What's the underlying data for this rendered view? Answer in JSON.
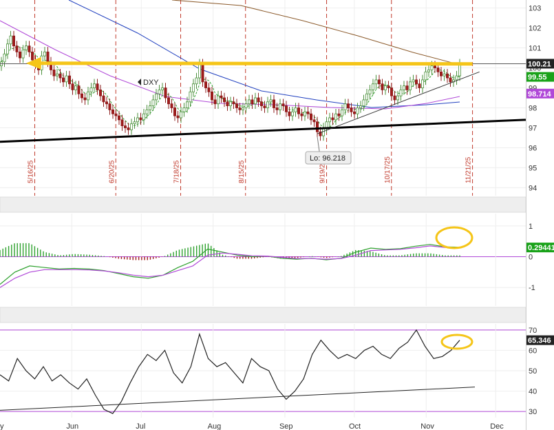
{
  "chart_data": [
    {
      "type": "candlestick",
      "panel": "price",
      "symbol": "DXY",
      "ylim": [
        93.6,
        103.4
      ],
      "y_ticks": [
        103,
        102,
        101,
        100,
        99,
        98,
        97,
        96,
        95,
        94
      ],
      "x_months": [
        {
          "label": "Jun",
          "date": "2025-06-01"
        },
        {
          "label": "Jul",
          "date": "2025-07-01"
        },
        {
          "label": "Aug",
          "date": "2025-08-01"
        },
        {
          "label": "Sep",
          "date": "2025-09-01"
        },
        {
          "label": "Oct",
          "date": "2025-10-01"
        },
        {
          "label": "Nov",
          "date": "2025-11-01"
        },
        {
          "label": "Dec",
          "date": "2025-12-01"
        }
      ],
      "x_start_label": "y",
      "expiry_markers": [
        "5/16/25",
        "6/20/25",
        "7/18/25",
        "8/15/25",
        "9/19/25",
        "10/17/25",
        "11/21/25"
      ],
      "low_annotation": "Lo: 96.218",
      "price_labels": [
        {
          "value": "100.21",
          "color": "#222222"
        },
        {
          "value": "99.55",
          "color": "#19a219"
        },
        {
          "value": "98.714",
          "color": "#b048d8"
        }
      ],
      "closes": [
        100.3,
        100.7,
        101.2,
        101.6,
        101.1,
        100.8,
        100.5,
        100.9,
        101.1,
        100.8,
        100.4,
        100.2,
        99.9,
        100.6,
        100.8,
        100.3,
        99.9,
        99.6,
        99.7,
        99.5,
        99.3,
        99.6,
        99.2,
        98.9,
        99.1,
        98.7,
        98.5,
        98.4,
        98.8,
        99.0,
        99.2,
        98.9,
        98.6,
        98.3,
        98.2,
        97.9,
        97.7,
        97.6,
        97.4,
        97.1,
        97.0,
        96.9,
        97.2,
        97.3,
        97.5,
        97.4,
        97.7,
        97.9,
        98.1,
        98.4,
        98.7,
        98.9,
        99.0,
        98.5,
        98.2,
        98.0,
        97.6,
        97.5,
        97.8,
        98.0,
        98.3,
        98.8,
        99.2,
        99.5,
        100.2,
        99.3,
        99.0,
        98.8,
        98.4,
        98.2,
        98.6,
        98.5,
        98.3,
        98.1,
        98.3,
        98.2,
        98.0,
        97.9,
        98.0,
        98.2,
        98.4,
        98.2,
        98.5,
        98.3,
        98.1,
        98.0,
        98.3,
        98.4,
        98.0,
        97.9,
        98.2,
        98.1,
        97.8,
        97.6,
        97.8,
        98.0,
        97.7,
        97.6,
        97.8,
        97.7,
        97.4,
        97.3,
        96.8,
        96.6,
        97.0,
        97.3,
        97.5,
        97.4,
        97.7,
        97.6,
        97.9,
        98.2,
        98.0,
        97.8,
        97.7,
        98.0,
        98.1,
        98.4,
        98.7,
        98.9,
        99.2,
        99.4,
        99.2,
        98.9,
        99.1,
        99.0,
        98.6,
        98.4,
        98.6,
        98.9,
        99.1,
        98.9,
        99.3,
        99.4,
        99.2,
        99.0,
        99.4,
        99.8,
        99.9,
        100.1,
        100.0,
        99.8,
        99.6,
        99.7,
        99.5,
        99.3,
        99.4,
        99.6,
        100.2
      ],
      "trendlines": [
        {
          "name": "support",
          "color": "#000000",
          "from": {
            "date": "2025-05-01",
            "value": 96.3
          },
          "to": {
            "date": "2025-12-15",
            "value": 97.4
          }
        },
        {
          "name": "rising",
          "color": "#333333",
          "from": {
            "date": "2025-09-15",
            "value": 96.7
          },
          "to": {
            "date": "2025-11-24",
            "value": 99.8
          }
        },
        {
          "name": "resistance-arrow",
          "color": "#f5c518",
          "from": {
            "date": "2025-11-21",
            "value": 100.2
          },
          "to": {
            "date": "2025-05-14",
            "value": 100.3
          }
        }
      ],
      "horizontal_line": 100.21
    },
    {
      "type": "line",
      "panel": "macd",
      "ylim": [
        -1.6,
        1.4
      ],
      "y_ticks": [
        1,
        0,
        -1
      ],
      "macd_label": "0.29441",
      "series": [
        {
          "color": "#2ca02c",
          "values": [
            -0.9,
            -0.5,
            -0.3,
            -0.35,
            -0.4,
            -0.38,
            -0.4,
            -0.45,
            -0.55,
            -0.65,
            -0.7,
            -0.6,
            -0.35,
            -0.15,
            0.25,
            0.15,
            0.05,
            0.0,
            0.02,
            -0.05,
            -0.08,
            -0.05,
            -0.1,
            -0.05,
            0.15,
            0.28,
            0.24,
            0.26,
            0.34,
            0.4,
            0.32,
            0.31
          ]
        },
        {
          "color": "#b048d8",
          "values": [
            -1.0,
            -0.7,
            -0.5,
            -0.42,
            -0.42,
            -0.42,
            -0.43,
            -0.46,
            -0.52,
            -0.6,
            -0.65,
            -0.6,
            -0.45,
            -0.3,
            0.05,
            0.12,
            0.08,
            0.03,
            0.02,
            -0.02,
            -0.06,
            -0.06,
            -0.08,
            -0.06,
            0.05,
            0.2,
            0.22,
            0.24,
            0.29,
            0.35,
            0.3,
            0.29
          ]
        }
      ]
    },
    {
      "type": "line",
      "panel": "rsi",
      "ylim": [
        27,
        73
      ],
      "y_ticks": [
        70,
        60,
        50,
        40,
        30
      ],
      "rsi_label": "65.346",
      "guides": [
        70,
        30
      ],
      "values": [
        48,
        45,
        56,
        50,
        46,
        52,
        45,
        48,
        44,
        41,
        46,
        38,
        31,
        29,
        35,
        44,
        52,
        58,
        55,
        60,
        49,
        44,
        52,
        68,
        56,
        52,
        54,
        49,
        44,
        56,
        52,
        50,
        41,
        36,
        40,
        46,
        58,
        65,
        60,
        56,
        58,
        56,
        60,
        62,
        58,
        56,
        61,
        64,
        70,
        62,
        56,
        57,
        60,
        65
      ],
      "trendline": {
        "from": {
          "index": 0,
          "value": 30.6
        },
        "to": {
          "index": 53,
          "value": 42
        }
      }
    }
  ]
}
